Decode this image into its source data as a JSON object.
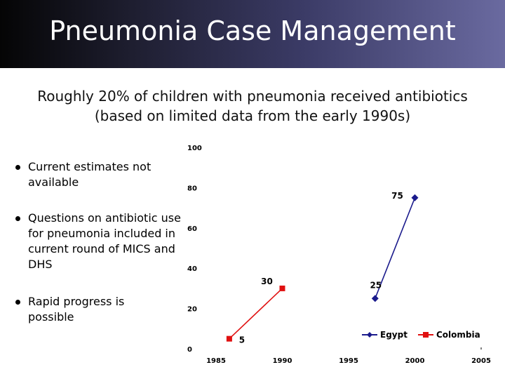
{
  "slide": {
    "title": "Pneumonia Case Management",
    "subtitle_line1": "Roughly 20% of children with pneumonia received antibiotics",
    "subtitle_line2": "(based on limited data from the early 1990s)"
  },
  "bullets": [
    "Current estimates not available",
    "Questions on antibiotic use for pneumonia included in current round of MICS and DHS",
    "Rapid progress is possible"
  ],
  "colors": {
    "egypt": "#1a1a8c",
    "colombia": "#e01010"
  },
  "chart_data": {
    "type": "line",
    "title": "",
    "xlabel": "",
    "ylabel": "",
    "xlim": [
      1985,
      2005
    ],
    "ylim": [
      0,
      100
    ],
    "x_ticks": [
      "1985",
      "1990",
      "1995",
      "2000",
      "2005"
    ],
    "y_ticks": [
      "0",
      "20",
      "40",
      "60",
      "80",
      "100"
    ],
    "grid": false,
    "legend_position": "bottom-right",
    "series": [
      {
        "name": "Egypt",
        "marker": "diamond",
        "points": [
          {
            "x": 1997,
            "y": 25,
            "label": "25"
          },
          {
            "x": 2000,
            "y": 75,
            "label": "75"
          }
        ]
      },
      {
        "name": "Colombia",
        "marker": "square",
        "points": [
          {
            "x": 1986,
            "y": 5,
            "label": "5"
          },
          {
            "x": 1990,
            "y": 30,
            "label": "30"
          }
        ]
      }
    ]
  }
}
